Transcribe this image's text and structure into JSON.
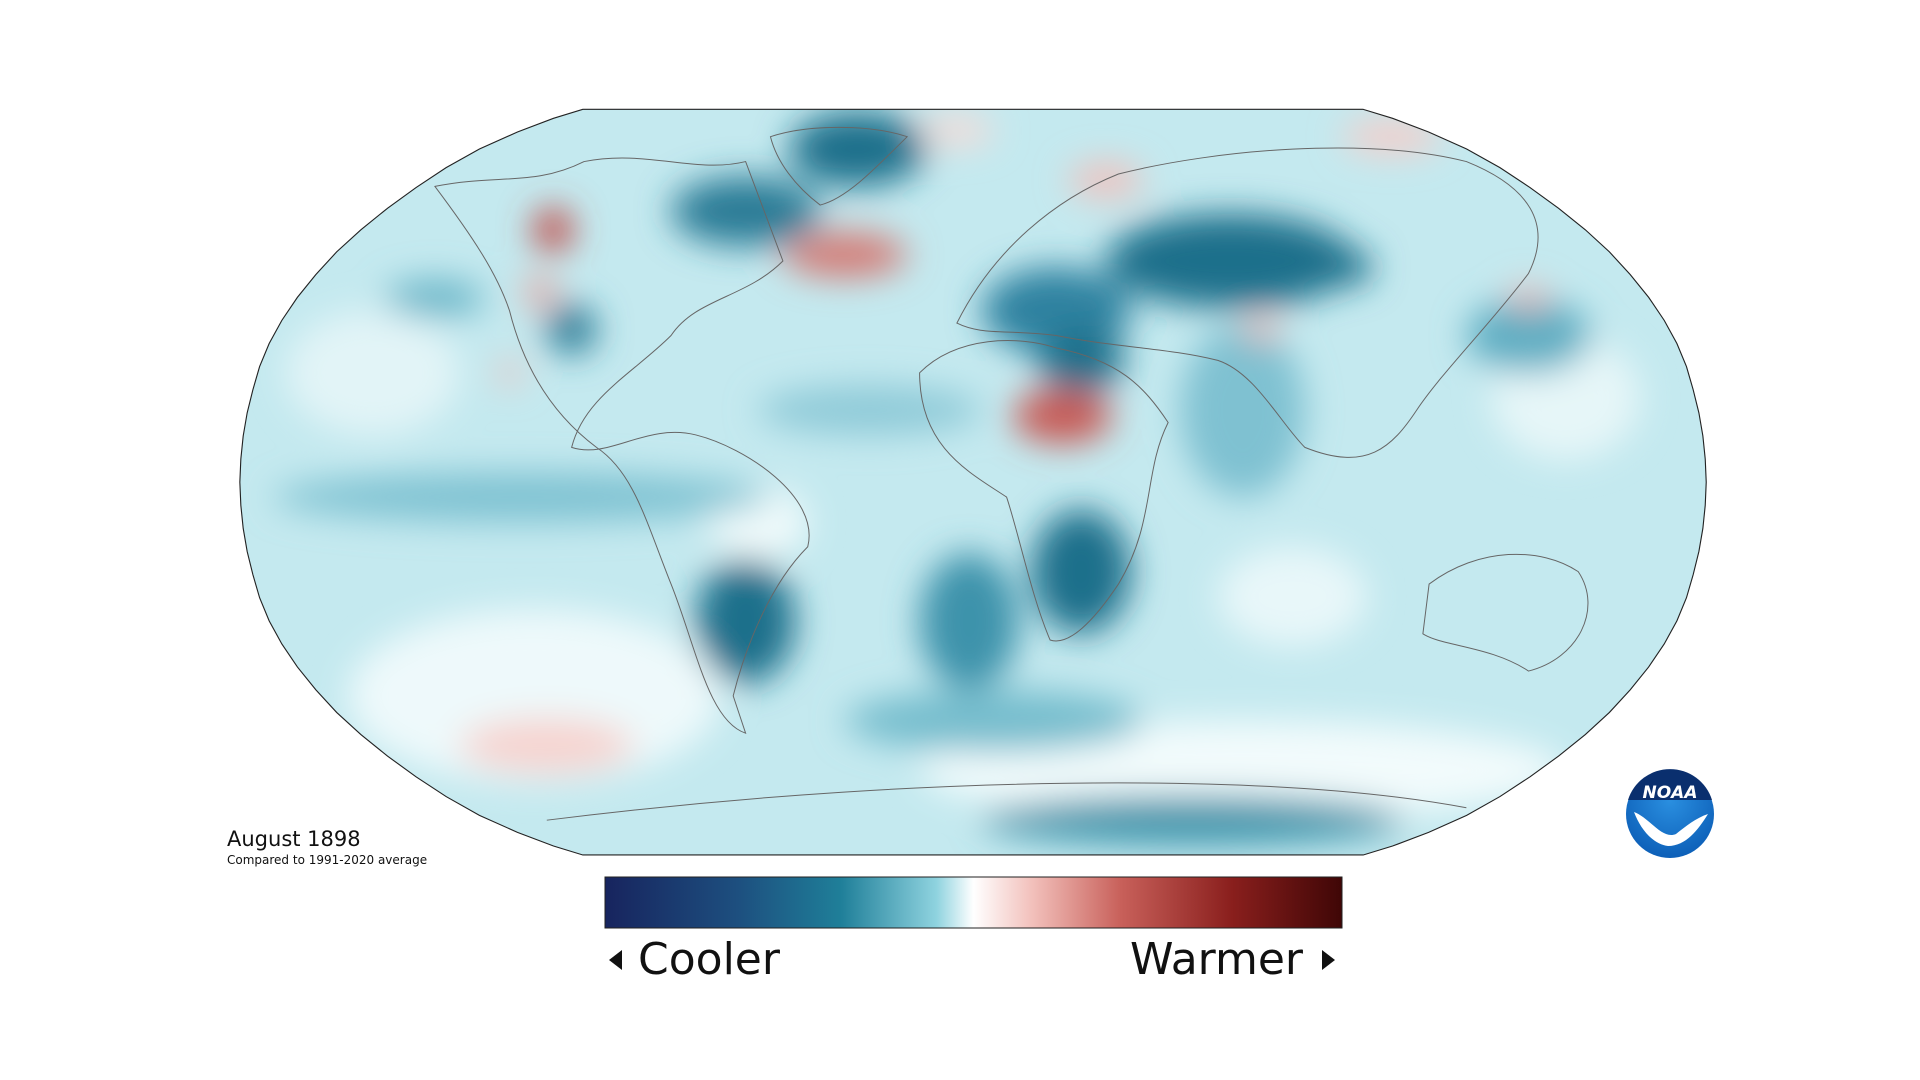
{
  "map": {
    "date": "August 1898",
    "subtitle": "Compared to 1991-2020 average"
  },
  "legend": {
    "low": "Cooler",
    "high": "Warmer"
  },
  "logo": {
    "text": "NOAA"
  }
}
